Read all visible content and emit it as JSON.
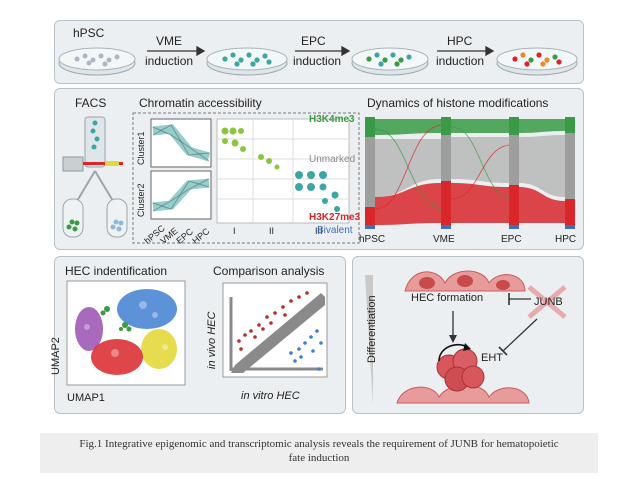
{
  "top": {
    "stages": [
      "hPSC",
      "",
      "",
      ""
    ],
    "arrows": [
      {
        "line1": "VME",
        "line2": "induction"
      },
      {
        "line1": "EPC",
        "line2": "induction"
      },
      {
        "line1": "HPC",
        "line2": "induction"
      }
    ]
  },
  "middle": {
    "facs_title": "FACS",
    "chromatin_title": "Chromatin accessibility",
    "cluster1": "Cluster1",
    "cluster2": "Cluster2",
    "stage_ticks": [
      "hPSC",
      "VME",
      "EPC",
      "HPC"
    ],
    "roman": [
      "I",
      "II",
      "III"
    ],
    "histone_title": "Dynamics of histone modifications",
    "h3k4": "H3K4me3",
    "unmarked": "Unmarked",
    "h3k27": "H3K27me3",
    "bivalent": "Bivalent",
    "histone_stages": [
      "hPSC",
      "VME",
      "EPC",
      "HPC"
    ]
  },
  "bottom_left": {
    "hec_title": "HEC indentification",
    "umap_x": "UMAP1",
    "umap_y": "UMAP2",
    "comp_title": "Comparison analysis",
    "comp_y": "in vivo HEC",
    "comp_x": "in vitro HEC"
  },
  "bottom_right": {
    "differentiation": "Differentiation",
    "hec_formation": "HEC formation",
    "junb": "JUNB",
    "eht": "EHT"
  },
  "caption": {
    "line1": "Fig.1 Integrative epigenomic and transcriptomic analysis reveals the requirement of JUNB for hematopoietic",
    "line2": "fate induction"
  },
  "colors": {
    "green": "#3a9a45",
    "red": "#d8262a",
    "blue": "#3f6fb5",
    "gray": "#8a8a8a",
    "teal": "#3aa7a5",
    "yellow": "#e3d83a",
    "purple": "#9a4fb0",
    "pink": "#e59a9a"
  }
}
